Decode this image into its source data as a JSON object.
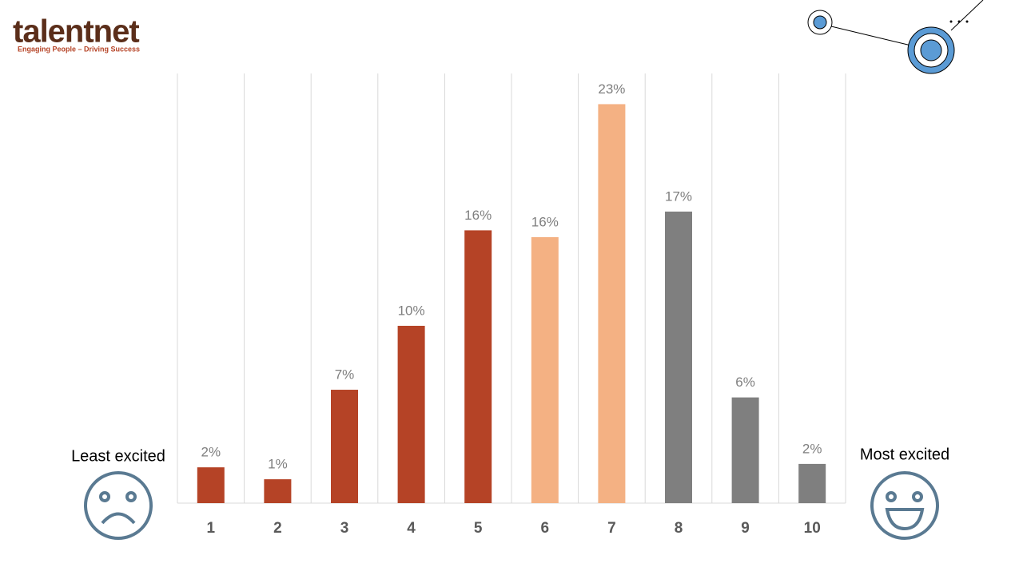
{
  "logo": {
    "name": "talentnet",
    "tagline": "Engaging People – Driving Success"
  },
  "chart_data": {
    "type": "bar",
    "categories": [
      "1",
      "2",
      "3",
      "4",
      "5",
      "6",
      "7",
      "8",
      "9",
      "10"
    ],
    "values": [
      2.1,
      1.4,
      6.65,
      10.4,
      16.0,
      15.6,
      23.4,
      17.1,
      6.2,
      2.3
    ],
    "value_labels": [
      "2%",
      "1%",
      "7%",
      "10%",
      "16%",
      "16%",
      "23%",
      "17%",
      "6%",
      "2%"
    ],
    "colors": [
      "#b54326",
      "#b54326",
      "#b54326",
      "#b54326",
      "#b54326",
      "#f4b183",
      "#f4b183",
      "#7f7f7f",
      "#7f7f7f",
      "#7f7f7f"
    ],
    "ylim": [
      0,
      25.2
    ],
    "grid": true,
    "annotations": [
      "Least excited",
      "Most excited"
    ]
  }
}
